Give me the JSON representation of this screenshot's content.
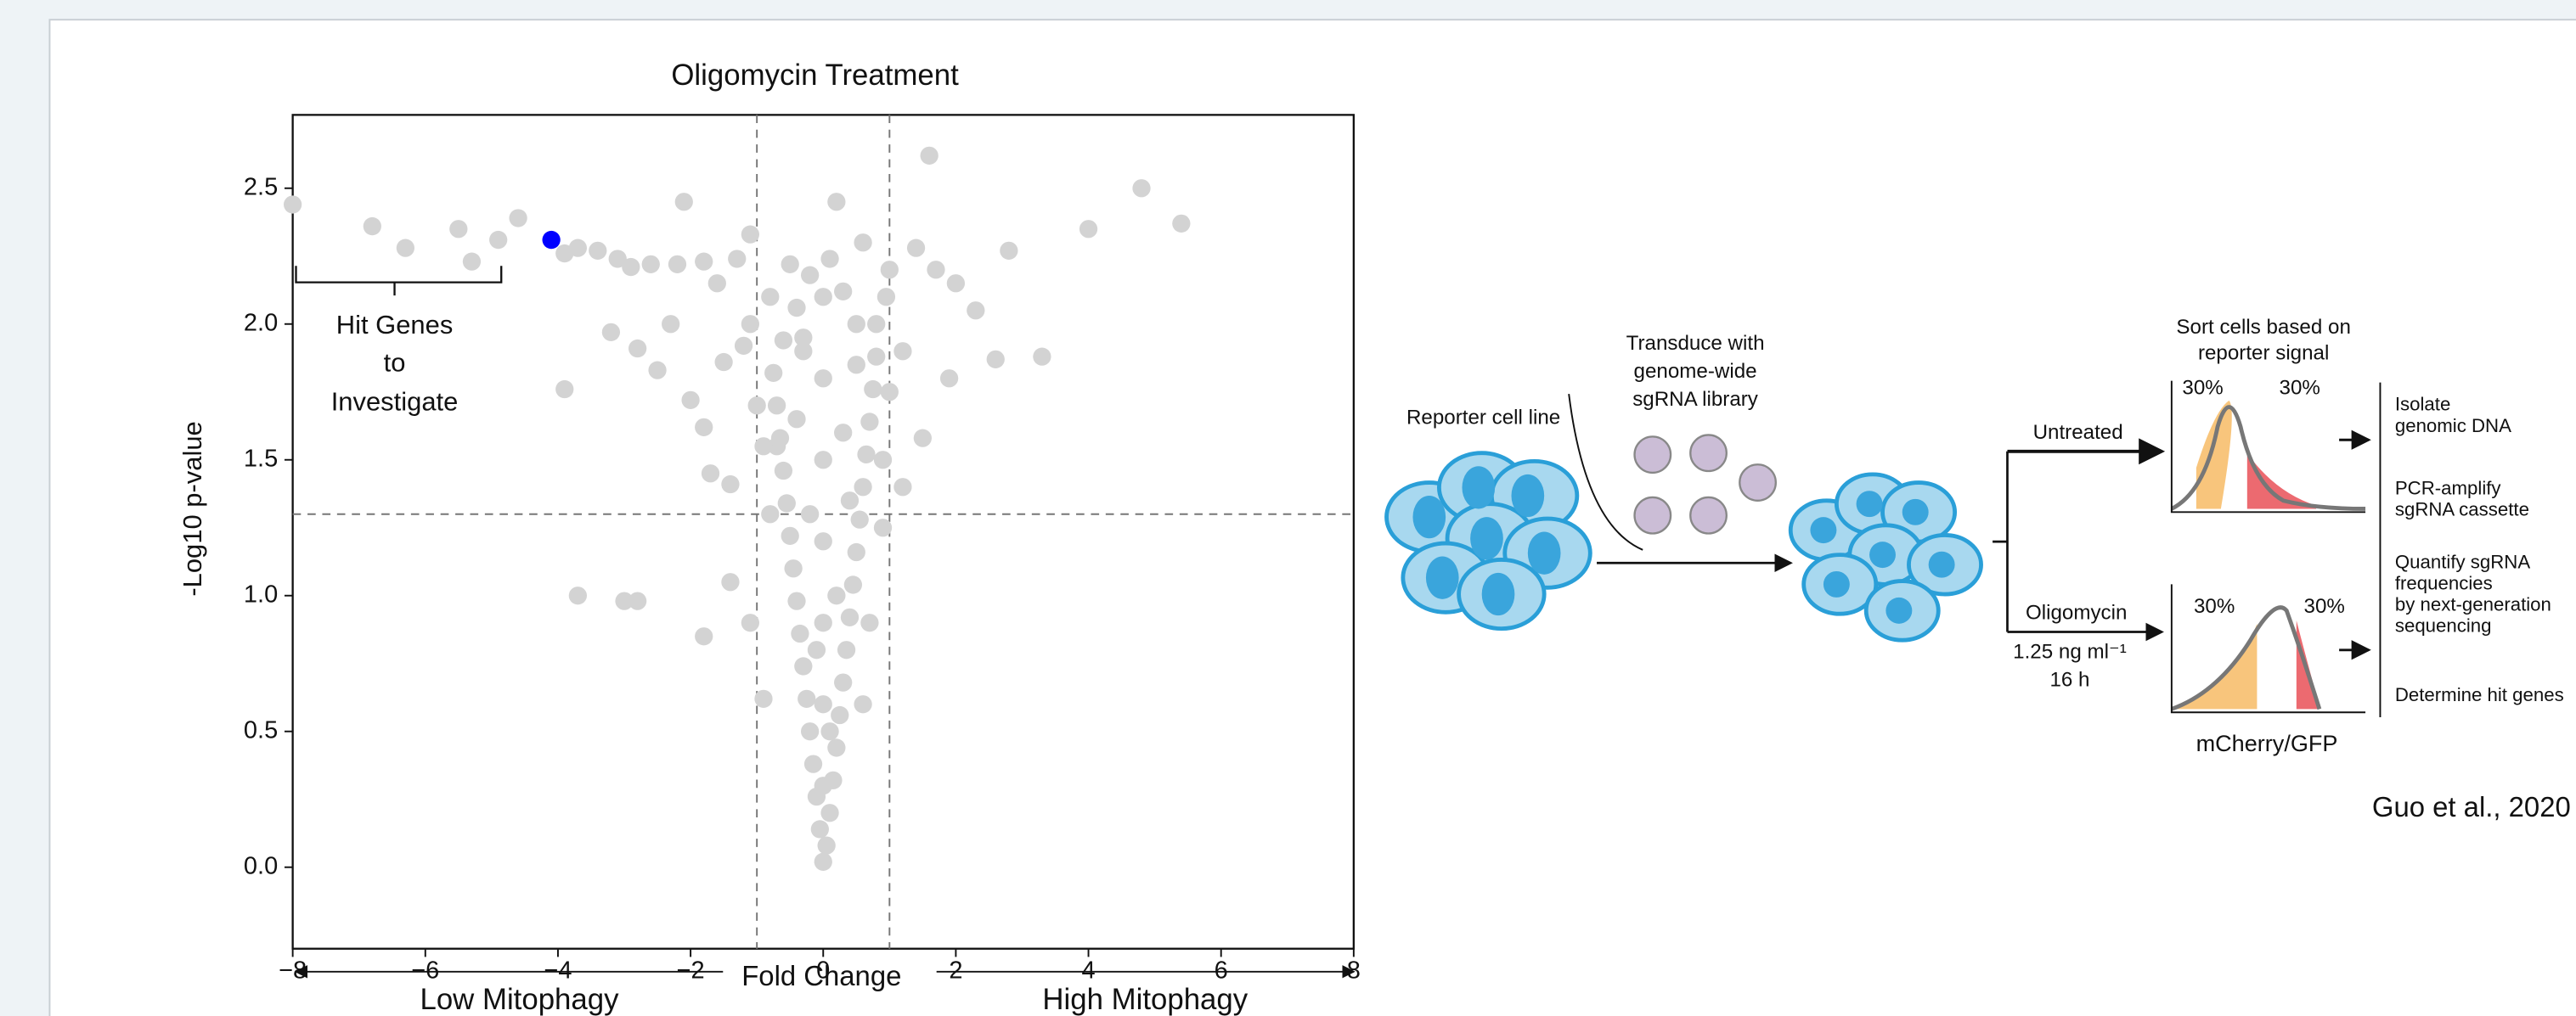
{
  "chart_data": {
    "type": "scatter",
    "title": "Oligomycin Treatment",
    "xlabel": "Fold Change",
    "ylabel": "-Log10 p-value",
    "xlim": [
      -8,
      8
    ],
    "ylim": [
      -0.3,
      2.77
    ],
    "xticks": [
      {
        "value": -8,
        "label": "−8"
      },
      {
        "value": -6,
        "label": "−6"
      },
      {
        "value": -4,
        "label": "−4"
      },
      {
        "value": -2,
        "label": "−2"
      },
      0,
      2,
      4,
      6,
      8
    ],
    "yticks": [
      {
        "value": 0,
        "label": "0.0"
      },
      0.5,
      {
        "value": 1,
        "label": "1.0"
      },
      1.5,
      {
        "value": 2,
        "label": "2.0"
      },
      2.5
    ],
    "vlines": [
      -1,
      1
    ],
    "hline": 1.3,
    "annotations": {
      "hit_genes": [
        "Hit Genes",
        "to",
        "Investigate"
      ],
      "low": "Low Mitophagy",
      "high": "High Mitophagy"
    },
    "series": [
      {
        "color": "#d3d3d3",
        "x": [
          -8,
          -6.8,
          -6.3,
          -5.5,
          -5.3,
          -4.9,
          -4.6,
          -3.9,
          -3.7,
          -3.4,
          -3.1,
          -2.9,
          -2.6,
          -2.2,
          -2.1,
          -1.8,
          -1.6,
          -1.3,
          -1.1,
          -3.9,
          -3.2,
          -2.8,
          -2.5,
          -2.3,
          -2.0,
          -1.8,
          -1.5,
          -1.7,
          -1.4,
          -1.2,
          -1.0,
          -0.8,
          -0.7,
          -0.5,
          -0.3,
          0.2,
          0.6,
          0.8,
          1.0,
          1.2,
          1.6,
          1.4,
          1.7,
          2.0,
          2.3,
          2.8,
          3.3,
          2.6,
          4.0,
          4.8,
          5.4,
          1.9,
          1.5,
          1.2,
          -3.7,
          -3.0,
          -2.8,
          -1.8,
          -1.4,
          -1.1,
          -0.9,
          0.9,
          0.7,
          0.6,
          0,
          0.05,
          -0.05,
          0.1,
          -0.1,
          0.15,
          -0.15,
          0.2,
          -0.2,
          0.25,
          -0.25,
          0.3,
          -0.3,
          0.35,
          -0.35,
          0.4,
          -0.4,
          0.45,
          -0.45,
          0.5,
          -0.5,
          0.55,
          -0.55,
          0.6,
          -0.6,
          0.65,
          -0.65,
          0.7,
          -0.7,
          0.75,
          -0.75,
          0.8,
          -0.6,
          0.5,
          -0.4,
          0.3,
          -0.2,
          0.1,
          0,
          0,
          0,
          0,
          0,
          0,
          0,
          0.2,
          -0.2,
          0.3,
          -0.3,
          0.1,
          -0.1,
          0.4,
          -0.4,
          0.5,
          -0.8,
          0.9,
          -0.9,
          1.0,
          -1.1,
          0.95
        ],
        "y": [
          2.44,
          2.36,
          2.28,
          2.35,
          2.23,
          2.31,
          2.39,
          2.26,
          2.28,
          2.27,
          2.24,
          2.21,
          2.22,
          2.22,
          2.45,
          2.23,
          2.15,
          2.24,
          2.33,
          1.76,
          1.97,
          1.91,
          1.83,
          2.0,
          1.72,
          1.62,
          1.86,
          1.45,
          1.41,
          1.92,
          1.7,
          2.1,
          1.55,
          2.22,
          1.95,
          2.45,
          2.3,
          2.0,
          2.2,
          1.9,
          2.62,
          2.28,
          2.2,
          2.15,
          2.05,
          2.27,
          1.88,
          1.87,
          2.35,
          2.5,
          2.37,
          1.8,
          1.58,
          1.4,
          1.0,
          0.98,
          0.98,
          0.85,
          1.05,
          0.9,
          0.62,
          1.25,
          0.9,
          0.6,
          0.02,
          0.08,
          0.14,
          0.2,
          0.26,
          0.32,
          0.38,
          0.44,
          0.5,
          0.56,
          0.62,
          0.68,
          0.74,
          0.8,
          0.86,
          0.92,
          0.98,
          1.04,
          1.1,
          1.16,
          1.22,
          1.28,
          1.34,
          1.4,
          1.46,
          1.52,
          1.58,
          1.64,
          1.7,
          1.76,
          1.82,
          1.88,
          1.94,
          2.0,
          2.06,
          2.12,
          2.18,
          2.24,
          0.3,
          0.6,
          0.9,
          1.2,
          1.5,
          1.8,
          2.1,
          1.0,
          1.3,
          1.6,
          1.9,
          0.5,
          0.8,
          1.35,
          1.65,
          1.85,
          1.3,
          1.5,
          1.55,
          1.75,
          2.0,
          2.1
        ]
      },
      {
        "color": "#0000ff",
        "x": [
          -4.1
        ],
        "y": [
          2.31
        ]
      }
    ]
  },
  "diagram": {
    "reporter": "Reporter cell line",
    "transduce": [
      "Transduce with",
      "genome-wide",
      "sgRNA library"
    ],
    "sort": [
      "Sort cells based on",
      "reporter signal"
    ],
    "untreated": "Untreated",
    "oligomycin": "Oligomycin",
    "dose": [
      "1.25 ng ml⁻¹",
      "16 h"
    ],
    "percent": [
      "30%",
      "30%",
      "30%",
      "30%"
    ],
    "xaxis": "mCherry/GFP",
    "steps": [
      [
        "Isolate",
        "genomic DNA"
      ],
      [
        "PCR-amplify",
        "sgRNA cassette"
      ],
      [
        "Quantify sgRNA",
        "frequencies",
        "by next-generation",
        "sequencing"
      ],
      [
        "Determine hit genes"
      ]
    ]
  },
  "citation": "Guo et al., 2020"
}
